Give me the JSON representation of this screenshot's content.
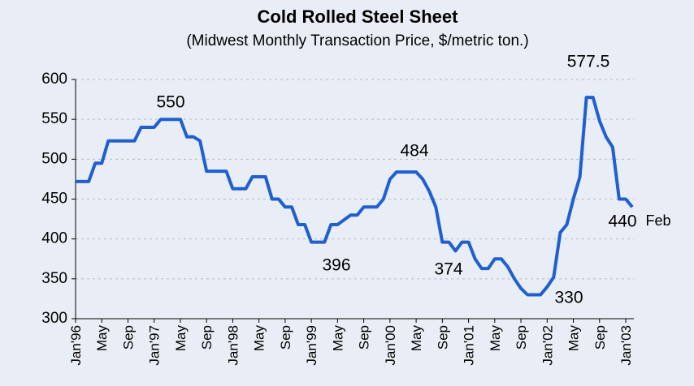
{
  "chart_data": {
    "type": "line",
    "title": "Cold Rolled Steel Sheet",
    "subtitle": "(Midwest Monthly Transaction Price, $/metric ton.)",
    "categories": [
      "Jan'96",
      null,
      null,
      null,
      "May",
      null,
      null,
      null,
      "Sep",
      null,
      null,
      null,
      "Jan'97",
      null,
      null,
      null,
      "May",
      null,
      null,
      null,
      "Sep",
      null,
      null,
      null,
      "Jan'98",
      null,
      null,
      null,
      "May",
      null,
      null,
      null,
      "Sep",
      null,
      null,
      null,
      "Jan'99",
      null,
      null,
      null,
      "May",
      null,
      null,
      null,
      "Sep",
      null,
      null,
      null,
      "Jan'00",
      null,
      null,
      null,
      "May",
      null,
      null,
      null,
      "Sep",
      null,
      null,
      null,
      "Jan'01",
      null,
      null,
      null,
      "May",
      null,
      null,
      null,
      "Sep",
      null,
      null,
      null,
      "Jan'02",
      null,
      null,
      null,
      "May",
      null,
      null,
      null,
      "Sep",
      null,
      null,
      null,
      "Jan'03",
      null
    ],
    "series": [
      {
        "name": "Price",
        "color": "#1f5fd0",
        "values": [
          472,
          472,
          472,
          495,
          495,
          523,
          523,
          523,
          523,
          523,
          540,
          540,
          540,
          550,
          550,
          550,
          550,
          528,
          528,
          523,
          485,
          485,
          485,
          485,
          463,
          463,
          463,
          478,
          478,
          478,
          450,
          450,
          440,
          440,
          418,
          418,
          396,
          396,
          396,
          418,
          418,
          424,
          430,
          430,
          440,
          440,
          440,
          450,
          475,
          484,
          484,
          484,
          484,
          475,
          460,
          440,
          396,
          396,
          385,
          396,
          396,
          375,
          363,
          363,
          375,
          375,
          365,
          350,
          338,
          330,
          330,
          330,
          340,
          352,
          408,
          418,
          450,
          478,
          577.5,
          577.5,
          548,
          528,
          515,
          450,
          450,
          440
        ]
      }
    ],
    "annotations": [
      "550",
      "396",
      "484",
      "374",
      "577.5",
      "330",
      "440",
      "Feb"
    ],
    "ylim": [
      300,
      600
    ],
    "yticks": [
      300,
      350,
      400,
      450,
      500,
      550,
      600
    ],
    "grid": true
  }
}
